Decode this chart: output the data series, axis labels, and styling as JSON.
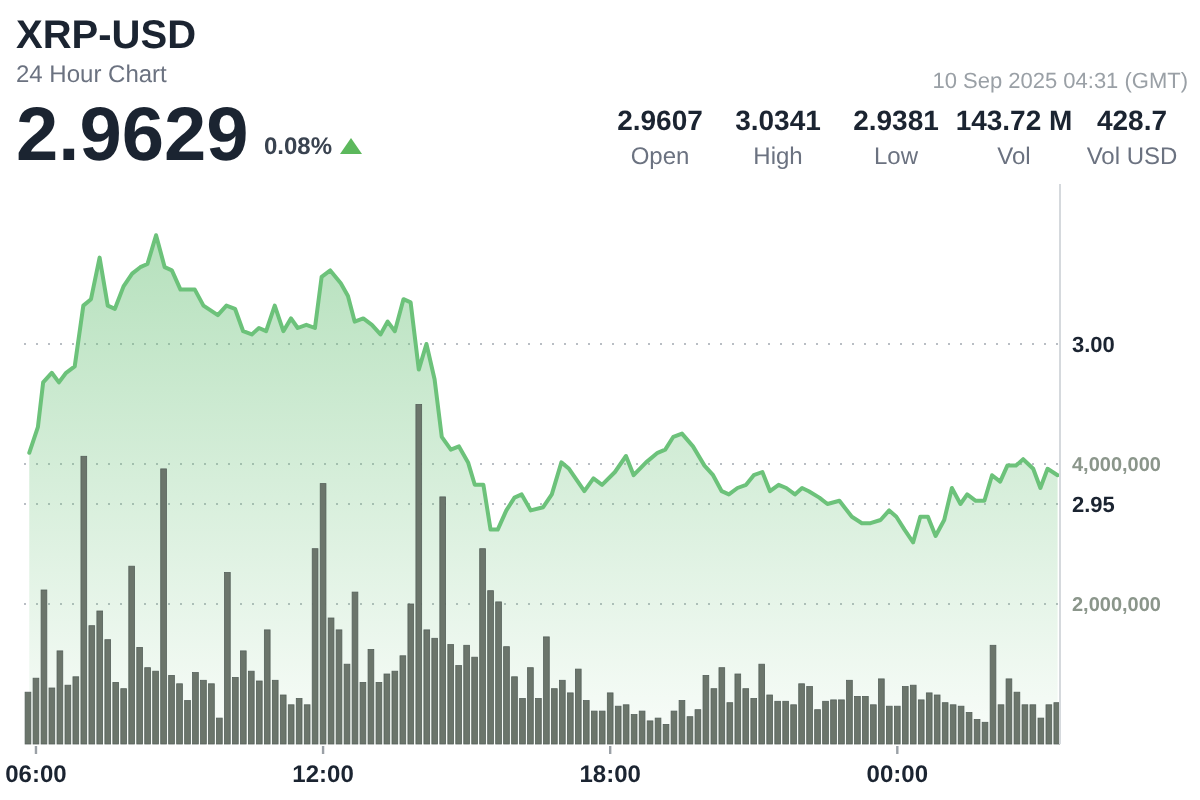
{
  "chart_data": {
    "type": "area",
    "title": "XRP-USD",
    "subtitle": "24 Hour Chart",
    "annotations": [
      "2.9629",
      "0.08%",
      "10 Sep 2025 04:31 (GMT)",
      "2.9607",
      "Open",
      "3.0341",
      "High",
      "2.9381",
      "Low",
      "143.72 M",
      "Vol",
      "428.7",
      "Vol USD"
    ],
    "xlim": [
      5.75,
      27.4
    ],
    "xticks": [
      {
        "value": 6,
        "label": "06:00"
      },
      {
        "value": 12,
        "label": "12:00"
      },
      {
        "value": 18,
        "label": "18:00"
      },
      {
        "value": 24,
        "label": "00:00"
      }
    ],
    "ylim": [
      2.875,
      3.05
    ],
    "yticks": [
      2.95,
      {
        "value": 3,
        "label": "3.00"
      }
    ],
    "y2lim": [
      0,
      8000000
    ],
    "y2ticks": [
      {
        "value": 2000000,
        "label": "2,000,000"
      },
      {
        "value": 4000000,
        "label": "4,000,000"
      }
    ],
    "grid": "y",
    "series": [
      {
        "color": "#6cc27a",
        "x": [
          5.86,
          6.04,
          6.15,
          6.33,
          6.48,
          6.63,
          6.81,
          6.99,
          7.15,
          7.33,
          7.5,
          7.65,
          7.83,
          8.01,
          8.18,
          8.33,
          8.51,
          8.69,
          8.84,
          9.02,
          9.32,
          9.5,
          9.8,
          9.98,
          10.16,
          10.33,
          10.51,
          10.66,
          10.81,
          10.99,
          11.17,
          11.33,
          11.47,
          11.65,
          11.83,
          11.97,
          12.15,
          12.37,
          12.52,
          12.66,
          12.84,
          13.02,
          13.2,
          13.35,
          13.5,
          13.68,
          13.83,
          14,
          14.16,
          14.33,
          14.48,
          14.67,
          14.84,
          15.03,
          15.17,
          15.35,
          15.5,
          15.65,
          15.83,
          16,
          16.15,
          16.34,
          16.6,
          16.78,
          16.98,
          17.14,
          17.46,
          17.65,
          17.83,
          18.1,
          18.33,
          18.49,
          18.75,
          18.99,
          19.15,
          19.32,
          19.5,
          19.73,
          19.97,
          20.15,
          20.33,
          20.48,
          20.66,
          20.84,
          21,
          21.18,
          21.34,
          21.52,
          21.68,
          21.86,
          22.01,
          22.15,
          22.37,
          22.54,
          22.79,
          23.05,
          23.26,
          23.44,
          23.65,
          23.83,
          23.98,
          24.15,
          24.33,
          24.48,
          24.64,
          24.8,
          24.98,
          25.14,
          25.32,
          25.46,
          25.64,
          25.82,
          25.98,
          26.15,
          26.3,
          26.48,
          26.63,
          26.84,
          26.99,
          27.14,
          27.35
        ],
        "values": [
          2.966,
          2.974,
          2.988,
          2.991,
          2.988,
          2.991,
          2.993,
          3.012,
          3.014,
          3.027,
          3.012,
          3.011,
          3.018,
          3.022,
          3.024,
          3.025,
          3.034,
          3.024,
          3.023,
          3.017,
          3.017,
          3.012,
          3.009,
          3.012,
          3.011,
          3.004,
          3.003,
          3.005,
          3.004,
          3.012,
          3.004,
          3.008,
          3.005,
          3.006,
          3.005,
          3.021,
          3.023,
          3.019,
          3.015,
          3.007,
          3.008,
          3.006,
          3.003,
          3.007,
          3.004,
          3.014,
          3.013,
          2.992,
          3.0,
          2.989,
          2.971,
          2.967,
          2.968,
          2.963,
          2.956,
          2.956,
          2.942,
          2.942,
          2.948,
          2.952,
          2.953,
          2.948,
          2.949,
          2.953,
          2.963,
          2.961,
          2.954,
          2.958,
          2.956,
          2.96,
          2.965,
          2.959,
          2.963,
          2.966,
          2.967,
          2.971,
          2.972,
          2.968,
          2.962,
          2.959,
          2.954,
          2.953,
          2.955,
          2.956,
          2.959,
          2.96,
          2.954,
          2.956,
          2.955,
          2.953,
          2.955,
          2.954,
          2.952,
          2.95,
          2.951,
          2.946,
          2.944,
          2.944,
          2.945,
          2.948,
          2.946,
          2.942,
          2.938,
          2.946,
          2.946,
          2.94,
          2.945,
          2.955,
          2.95,
          2.953,
          2.951,
          2.951,
          2.959,
          2.957,
          2.962,
          2.962,
          2.964,
          2.961,
          2.955,
          2.961,
          2.959
        ]
      },
      {
        "type": "bar",
        "axis": "y2",
        "color": "#6b756b",
        "x": [
          5.833,
          6,
          6.167,
          6.333,
          6.5,
          6.667,
          6.833,
          7,
          7.167,
          7.333,
          7.5,
          7.667,
          7.833,
          8,
          8.167,
          8.333,
          8.5,
          8.667,
          8.833,
          9,
          9.167,
          9.333,
          9.5,
          9.667,
          9.833,
          10,
          10.167,
          10.333,
          10.5,
          10.667,
          10.833,
          11,
          11.167,
          11.333,
          11.5,
          11.667,
          11.833,
          12,
          12.167,
          12.333,
          12.5,
          12.667,
          12.833,
          13,
          13.167,
          13.333,
          13.5,
          13.667,
          13.833,
          14,
          14.167,
          14.333,
          14.5,
          14.667,
          14.833,
          15,
          15.167,
          15.333,
          15.5,
          15.667,
          15.833,
          16,
          16.167,
          16.333,
          16.5,
          16.667,
          16.833,
          17,
          17.167,
          17.333,
          17.5,
          17.667,
          17.833,
          18,
          18.167,
          18.333,
          18.5,
          18.667,
          18.833,
          19,
          19.167,
          19.333,
          19.5,
          19.667,
          19.833,
          20,
          20.167,
          20.333,
          20.5,
          20.667,
          20.833,
          21,
          21.167,
          21.333,
          21.5,
          21.667,
          21.833,
          22,
          22.167,
          22.333,
          22.5,
          22.667,
          22.833,
          23,
          23.167,
          23.333,
          23.5,
          23.667,
          23.833,
          24,
          24.167,
          24.333,
          24.5,
          24.667,
          24.833,
          25,
          25.167,
          25.333,
          25.5,
          25.667,
          25.833,
          26,
          26.167,
          26.333,
          26.5,
          26.667,
          26.833,
          27,
          27.167,
          27.333
        ],
        "values": [
          740000,
          940000,
          2200000,
          800000,
          1330000,
          840000,
          960000,
          4110000,
          1690000,
          1900000,
          1490000,
          880000,
          790000,
          2540000,
          1380000,
          1090000,
          1040000,
          3930000,
          980000,
          860000,
          620000,
          1020000,
          910000,
          860000,
          370000,
          2450000,
          950000,
          1330000,
          1040000,
          900000,
          1630000,
          910000,
          700000,
          560000,
          650000,
          560000,
          2790000,
          3720000,
          1800000,
          1630000,
          1140000,
          2170000,
          880000,
          1350000,
          880000,
          1000000,
          1040000,
          1260000,
          2000000,
          4850000,
          1630000,
          1510000,
          3530000,
          1420000,
          1120000,
          1410000,
          1240000,
          2790000,
          2190000,
          2030000,
          1390000,
          960000,
          650000,
          1090000,
          650000,
          1530000,
          790000,
          910000,
          730000,
          1070000,
          620000,
          470000,
          470000,
          730000,
          540000,
          560000,
          420000,
          470000,
          330000,
          370000,
          280000,
          470000,
          620000,
          390000,
          490000,
          980000,
          790000,
          1090000,
          590000,
          1000000,
          790000,
          650000,
          1140000,
          700000,
          610000,
          610000,
          560000,
          860000,
          820000,
          490000,
          610000,
          630000,
          630000,
          910000,
          680000,
          680000,
          560000,
          930000,
          540000,
          540000,
          820000,
          840000,
          630000,
          730000,
          700000,
          590000,
          560000,
          540000,
          450000,
          350000,
          310000,
          1410000,
          560000,
          930000,
          740000,
          560000,
          560000,
          370000,
          560000,
          590000
        ]
      }
    ]
  }
}
